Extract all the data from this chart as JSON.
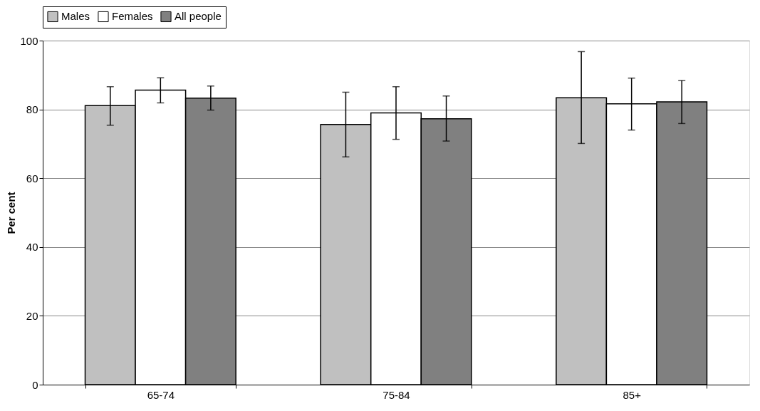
{
  "chart_data": {
    "type": "bar",
    "ylabel": "Per cent",
    "categories": [
      "65-74",
      "75-84",
      "85+"
    ],
    "series": [
      {
        "name": "Males",
        "color": "#c0c0c0",
        "values": [
          81.1,
          75.6,
          83.4
        ],
        "errors": [
          [
            75.4,
            86.6
          ],
          [
            66.2,
            85.0
          ],
          [
            70.1,
            96.8
          ]
        ]
      },
      {
        "name": "Females",
        "color": "#ffffff",
        "values": [
          85.6,
          79.0,
          81.6
        ],
        "errors": [
          [
            81.9,
            89.2
          ],
          [
            71.3,
            86.6
          ],
          [
            74.0,
            89.1
          ]
        ]
      },
      {
        "name": "All people",
        "color": "#808080",
        "values": [
          83.3,
          77.3,
          82.2
        ],
        "errors": [
          [
            79.8,
            86.8
          ],
          [
            70.8,
            83.9
          ],
          [
            75.9,
            88.4
          ]
        ]
      }
    ],
    "ylim": [
      0,
      100
    ],
    "yticks": [
      0,
      20,
      40,
      60,
      80,
      100
    ],
    "grid": "y",
    "legend": "top"
  }
}
